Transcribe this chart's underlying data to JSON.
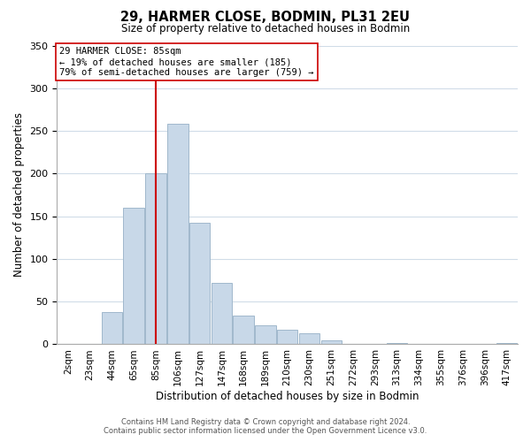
{
  "title": "29, HARMER CLOSE, BODMIN, PL31 2EU",
  "subtitle": "Size of property relative to detached houses in Bodmin",
  "xlabel": "Distribution of detached houses by size in Bodmin",
  "ylabel": "Number of detached properties",
  "bar_labels": [
    "2sqm",
    "23sqm",
    "44sqm",
    "65sqm",
    "85sqm",
    "106sqm",
    "127sqm",
    "147sqm",
    "168sqm",
    "189sqm",
    "210sqm",
    "230sqm",
    "251sqm",
    "272sqm",
    "293sqm",
    "313sqm",
    "334sqm",
    "355sqm",
    "376sqm",
    "396sqm",
    "417sqm"
  ],
  "bar_values": [
    0,
    0,
    38,
    160,
    200,
    258,
    142,
    72,
    34,
    22,
    17,
    13,
    5,
    0,
    0,
    1,
    0,
    0,
    0,
    0,
    1
  ],
  "bar_color": "#c8d8e8",
  "bar_edge_color": "#a0b8cc",
  "vline_x_index": 4,
  "vline_color": "#cc0000",
  "ylim": [
    0,
    350
  ],
  "yticks": [
    0,
    50,
    100,
    150,
    200,
    250,
    300,
    350
  ],
  "annotation_title": "29 HARMER CLOSE: 85sqm",
  "annotation_line1": "← 19% of detached houses are smaller (185)",
  "annotation_line2": "79% of semi-detached houses are larger (759) →",
  "annotation_box_color": "#ffffff",
  "annotation_box_edge": "#cc0000",
  "footer_line1": "Contains HM Land Registry data © Crown copyright and database right 2024.",
  "footer_line2": "Contains public sector information licensed under the Open Government Licence v3.0.",
  "background_color": "#ffffff",
  "grid_color": "#d0dce8"
}
